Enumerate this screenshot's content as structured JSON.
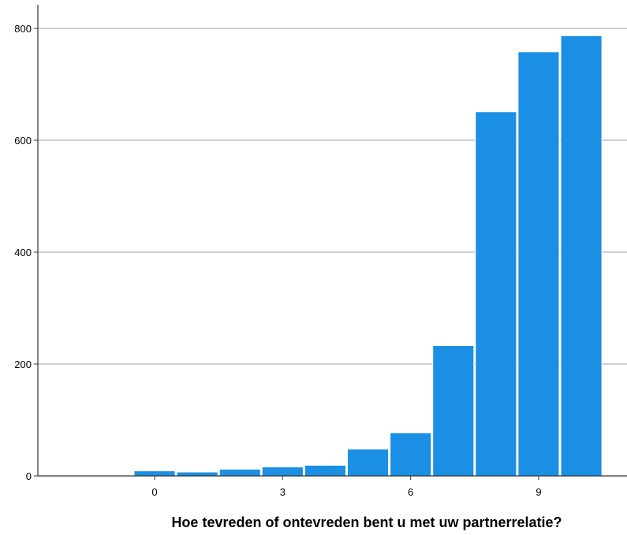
{
  "chart_data": {
    "type": "bar",
    "title": "",
    "xlabel": "Hoe tevreden of ontevreden bent u met uw partnerrelatie?",
    "ylabel": "",
    "categories": [
      "0",
      "1",
      "2",
      "3",
      "4",
      "5",
      "6",
      "7",
      "8",
      "9",
      "10"
    ],
    "values": [
      9,
      7,
      12,
      16,
      19,
      48,
      77,
      233,
      651,
      758,
      787
    ],
    "x_ticks": [
      "0",
      "3",
      "6",
      "9"
    ],
    "y_ticks": [
      0,
      200,
      400,
      600,
      800
    ],
    "ylim": [
      0,
      830
    ],
    "grid": "horizontal",
    "bar_color": "#1a8fe3",
    "bar_edge_color": "#ffffff",
    "grid_color": "#b3b3b3",
    "axis_color": "#333333"
  }
}
